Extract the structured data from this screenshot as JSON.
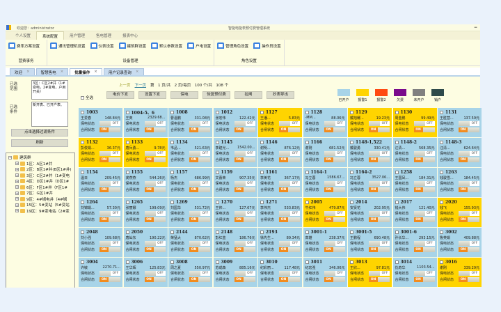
{
  "header": {
    "welcome": "欢迎您：administrator",
    "title": "智能电能表预付费管理系统"
  },
  "ribbon_tabs": [
    "个人设置",
    "系统配置",
    "用户管理",
    "售电管理",
    "报表中心"
  ],
  "ribbon_groups": [
    {
      "name": "营费事务",
      "items": [
        "费率方案设置"
      ]
    },
    {
      "name": "设备管理",
      "items": [
        "通讯管理机设置",
        "仪表设置",
        "建筑群设置",
        "默认参数设置",
        "户电设置"
      ]
    },
    {
      "name": "角色设置",
      "items": [
        "管理角色设置",
        "操作员设置"
      ]
    }
  ],
  "doc_tabs": [
    {
      "label": "欢迎",
      "active": false
    },
    {
      "label": "智慧售电",
      "active": false
    },
    {
      "label": "批量操作",
      "active": true
    },
    {
      "label": "用户记录查询",
      "active": false
    }
  ],
  "left": {
    "range_label": "已选范围",
    "range_value": "3区：C区2#井（1#变电，2#变电，户用开关）",
    "cond_label": "已选条件",
    "cond_value": "新开表、已开户表、",
    "filter_button": "点击选择过滤条件",
    "refresh_button": "刷新",
    "tree_root": "建筑群",
    "tree": [
      "1区：A区1#井",
      "2区：B区1#井(B区1#井)",
      "3区：C区2#井（1#变电",
      "4区：D区1#井（D区1#",
      "6区：F区1#井（F区1#",
      "7区：G区1#井",
      "9区：4#锅电井（4#锅",
      "15区：5#变站（5#变站",
      "19区：9#变电站（2#变"
    ]
  },
  "toolbar": {
    "prev": "上一页",
    "next": "下一页",
    "page_info": "第　1 页/共　2 页/每页　100 个/共　108 个",
    "select_all": "全选",
    "buttons": [
      "电价下发",
      "设置下发",
      "保电",
      "恢复预付费",
      "拉闸",
      "抄表导出"
    ]
  },
  "legend": [
    {
      "label": "已开户",
      "color": "#a8d4e8"
    },
    {
      "label": "报警1",
      "color": "#ffd400"
    },
    {
      "label": "报警2",
      "color": "#ff4a12"
    },
    {
      "label": "欠费",
      "color": "#7a0a8c"
    },
    {
      "label": "未开户",
      "color": "#808080"
    },
    {
      "label": "销户",
      "color": "#2e4a4a"
    }
  ],
  "card_labels": {
    "power_state": "保电状态",
    "switch_state": "合闸状态",
    "off": "OFF",
    "on": "ON"
  },
  "cards": [
    {
      "id": "1003",
      "name": "王爱春",
      "amount": "148.84元",
      "status": "已开户"
    },
    {
      "id": "1004-5、6",
      "name": "王英",
      "amount": "2329.68...",
      "status": "已开户"
    },
    {
      "id": "1008",
      "name": "曹温鹏",
      "amount": "331.08元",
      "status": "已开户"
    },
    {
      "id": "1012",
      "name": "张宏伟",
      "amount": "122.42元",
      "status": "已开户"
    },
    {
      "id": "1127",
      "name": "王潘...",
      "amount": "5.83元",
      "status": "报警1"
    },
    {
      "id": "1128",
      "name": "-MM...",
      "amount": "88.06元",
      "status": "已开户"
    },
    {
      "id": "1129",
      "name": "戴旭耀...",
      "amount": "19.23元",
      "status": "报警1"
    },
    {
      "id": "1130",
      "name": "周金鹏",
      "amount": "99.49元",
      "status": "报警1"
    },
    {
      "id": "1131",
      "name": "王胜营...",
      "amount": "137.59元",
      "status": "已开户"
    },
    {
      "id": "1132",
      "name": "彭俊娟...",
      "amount": "36.37元",
      "status": "报警1"
    },
    {
      "id": "1133",
      "name": "唐兵勇...",
      "amount": "9.78元",
      "status": "报警1"
    },
    {
      "id": "1134",
      "name": "韦品...",
      "amount": "521.63元",
      "status": "已开户"
    },
    {
      "id": "1145",
      "name": "李建光...",
      "amount": "1542.00...",
      "status": "已开户"
    },
    {
      "id": "1146",
      "name": "谢明...",
      "amount": "876.12元",
      "status": "已开户"
    },
    {
      "id": "1166",
      "name": "谢刚",
      "amount": "681.52元",
      "status": "已开户"
    },
    {
      "id": "1148-1,522",
      "name": "戴骏勇",
      "amount": "330.41元",
      "status": "已开户"
    },
    {
      "id": "1148-2",
      "name": "汪清...",
      "amount": "568.35元",
      "status": "已开户"
    },
    {
      "id": "1148-3",
      "name": "汪清...",
      "amount": "624.64元",
      "status": "已开户"
    },
    {
      "id": "1154",
      "name": "温日",
      "amount": "209.45元",
      "status": "已开户"
    },
    {
      "id": "1155",
      "name": "龚燕燕",
      "amount": "544.26元",
      "status": "已开户"
    },
    {
      "id": "1157",
      "name": "杨杰",
      "amount": "686.99元",
      "status": "已开户"
    },
    {
      "id": "1159",
      "name": "文蕾荣",
      "amount": "907.35元",
      "status": "已开户"
    },
    {
      "id": "1161",
      "name": "李美花",
      "amount": "367.17元",
      "status": "已开户"
    },
    {
      "id": "1164-1",
      "name": "冯立蓉",
      "amount": "1586.67...",
      "status": "已开户"
    },
    {
      "id": "1164-2",
      "name": "冯立蓉",
      "amount": "3527.06...",
      "status": "已开户"
    },
    {
      "id": "1258",
      "name": "王国凤...",
      "amount": "184.31元",
      "status": "已开户"
    },
    {
      "id": "1263",
      "name": "钱骏雪...",
      "amount": "184.45元",
      "status": "已开户"
    },
    {
      "id": "1264",
      "name": "刘锦娟...",
      "amount": "57.30元",
      "status": "已开户"
    },
    {
      "id": "1265",
      "name": "张丽娜",
      "amount": "199.09元",
      "status": "已开户"
    },
    {
      "id": "1269",
      "name": "刘国华",
      "amount": "531.72元",
      "status": "已开户"
    },
    {
      "id": "1270",
      "name": "王帅...",
      "amount": "127.67元",
      "status": "已开户"
    },
    {
      "id": "1271",
      "name": "李伟杰",
      "amount": "533.83元",
      "status": "已开户"
    },
    {
      "id": "2005",
      "name": "牛红伟",
      "amount": "479.87元",
      "status": "报警1"
    },
    {
      "id": "2014",
      "name": "安贤花",
      "amount": "202.95元",
      "status": "已开户"
    },
    {
      "id": "2017",
      "name": "钱大伟",
      "amount": "121.40元",
      "status": "已开户"
    },
    {
      "id": "2020",
      "name": "钱飞",
      "amount": "155.93元",
      "status": "报警1"
    },
    {
      "id": "2048",
      "name": "刘小强",
      "amount": "109.68元",
      "status": "已开户"
    },
    {
      "id": "2050",
      "name": "唐灿东",
      "amount": "190.22元",
      "status": "已开户"
    },
    {
      "id": "2144",
      "name": "荣猛大",
      "amount": "870.62元",
      "status": "已开户"
    },
    {
      "id": "2148",
      "name": "彭红蓝",
      "amount": "186.76元",
      "status": "已开户"
    },
    {
      "id": "2193",
      "name": "徐先生...",
      "amount": "89.34元",
      "status": "已开户"
    },
    {
      "id": "3001-1",
      "name": "高雄",
      "amount": "238.37元",
      "status": "已开户"
    },
    {
      "id": "3001-5",
      "name": "王鹏程",
      "amount": "690.48元",
      "status": "已开户"
    },
    {
      "id": "3001-6",
      "name": "孙长华...",
      "amount": "293.15元",
      "status": "已开户"
    },
    {
      "id": "3002",
      "name": "鲁英娟",
      "amount": "409.88元",
      "status": "已开户"
    },
    {
      "id": "3004",
      "name": "许敏",
      "amount": "2270.71...",
      "status": "已开户"
    },
    {
      "id": "3006",
      "name": "王华辉",
      "amount": "125.83元",
      "status": "已开户"
    },
    {
      "id": "3008",
      "name": "周之夏",
      "amount": "550.97元",
      "status": "已开户"
    },
    {
      "id": "3009",
      "name": "苏成森",
      "amount": "885.16元",
      "status": "已开户"
    },
    {
      "id": "3010",
      "name": "纪彩丽...",
      "amount": "117.48元",
      "status": "已开户"
    },
    {
      "id": "3011",
      "name": "纪宏强",
      "amount": "346.06元",
      "status": "已开户"
    },
    {
      "id": "3013",
      "name": "王欣...",
      "amount": "97.81元",
      "status": "报警1"
    },
    {
      "id": "3014",
      "name": "仇奇华",
      "amount": "1103.54...",
      "status": "已开户"
    },
    {
      "id": "3016",
      "name": "谢刚",
      "amount": "339.29元",
      "status": "报警1"
    }
  ]
}
